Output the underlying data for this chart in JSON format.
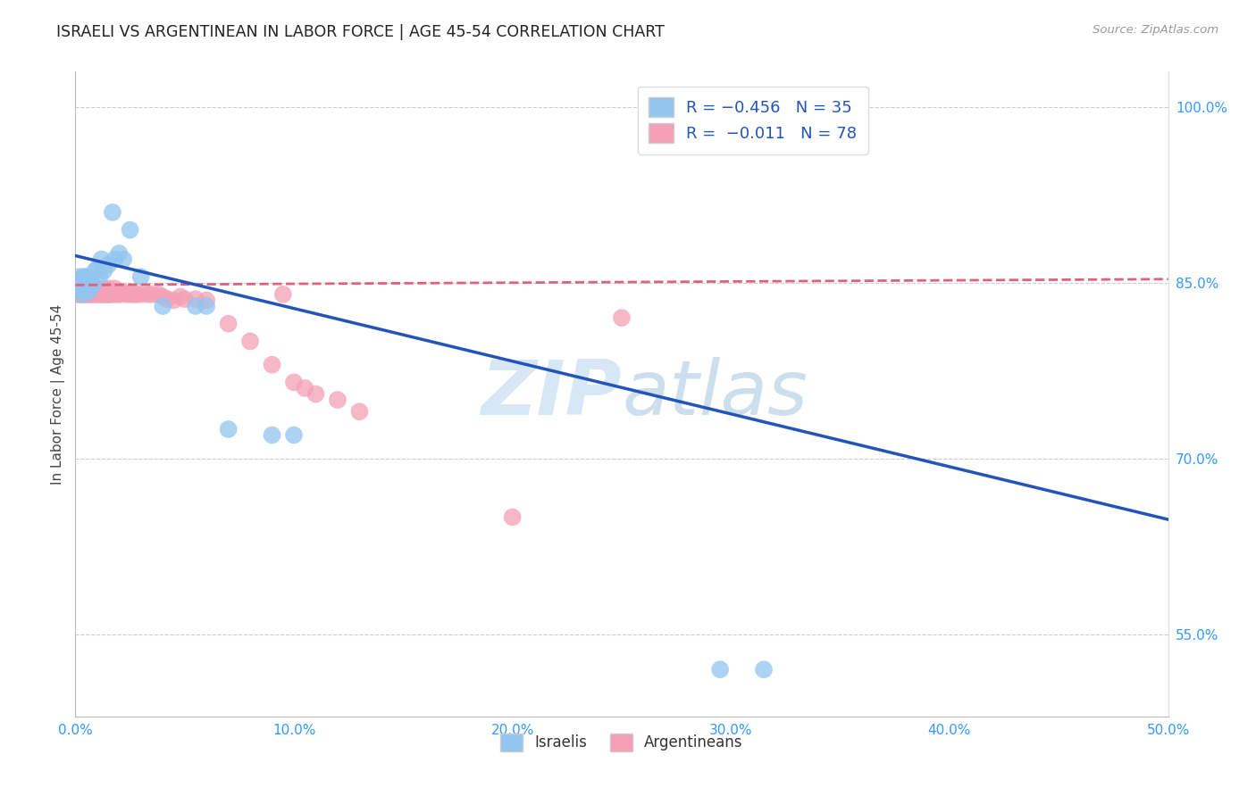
{
  "title": "ISRAELI VS ARGENTINEAN IN LABOR FORCE | AGE 45-54 CORRELATION CHART",
  "source": "Source: ZipAtlas.com",
  "ylabel": "In Labor Force | Age 45-54",
  "xlim": [
    0.0,
    0.5
  ],
  "ylim": [
    0.48,
    1.03
  ],
  "xticks": [
    0.0,
    0.1,
    0.2,
    0.3,
    0.4,
    0.5
  ],
  "xticklabels": [
    "0.0%",
    "10.0%",
    "20.0%",
    "30.0%",
    "40.0%",
    "50.0%"
  ],
  "ytick_vals": [
    0.55,
    0.7,
    0.85,
    1.0
  ],
  "ytick_labels": [
    "55.0%",
    "70.0%",
    "85.0%",
    "100.0%"
  ],
  "legend_blue_label": "R = −0.456   N = 35",
  "legend_pink_label": "R =  −0.011   N = 78",
  "watermark_zip": "ZIP",
  "watermark_atlas": "atlas",
  "blue_color": "#92C5F0",
  "pink_color": "#F4A0B5",
  "blue_line_color": "#2255BB",
  "pink_line_color": "#E06080",
  "israelis_label": "Israelis",
  "argentineans_label": "Argentineans",
  "blue_line_x0": 0.0,
  "blue_line_y0": 0.873,
  "blue_line_x1": 0.5,
  "blue_line_y1": 0.648,
  "pink_line_x0": 0.0,
  "pink_line_y0": 0.848,
  "pink_line_x1": 0.5,
  "pink_line_y1": 0.853,
  "blue_scatter_x": [
    0.001,
    0.001,
    0.002,
    0.002,
    0.003,
    0.003,
    0.004,
    0.004,
    0.005,
    0.005,
    0.006,
    0.006,
    0.007,
    0.008,
    0.009,
    0.01,
    0.011,
    0.012,
    0.013,
    0.015,
    0.017,
    0.018,
    0.02,
    0.022,
    0.025,
    0.03,
    0.04,
    0.055,
    0.06,
    0.07,
    0.09,
    0.1,
    0.295,
    0.315,
    0.355
  ],
  "blue_scatter_y": [
    0.845,
    0.85,
    0.845,
    0.855,
    0.84,
    0.848,
    0.845,
    0.855,
    0.845,
    0.855,
    0.842,
    0.852,
    0.848,
    0.848,
    0.86,
    0.862,
    0.855,
    0.87,
    0.86,
    0.865,
    0.91,
    0.87,
    0.875,
    0.87,
    0.895,
    0.855,
    0.83,
    0.83,
    0.83,
    0.725,
    0.72,
    0.72,
    0.52,
    0.52,
    1.0
  ],
  "pink_scatter_x": [
    0.001,
    0.001,
    0.001,
    0.001,
    0.001,
    0.001,
    0.002,
    0.002,
    0.002,
    0.002,
    0.002,
    0.003,
    0.003,
    0.003,
    0.003,
    0.003,
    0.004,
    0.004,
    0.004,
    0.005,
    0.005,
    0.005,
    0.005,
    0.006,
    0.006,
    0.006,
    0.007,
    0.007,
    0.007,
    0.008,
    0.008,
    0.008,
    0.009,
    0.009,
    0.01,
    0.01,
    0.011,
    0.011,
    0.012,
    0.012,
    0.013,
    0.013,
    0.014,
    0.015,
    0.015,
    0.016,
    0.017,
    0.018,
    0.019,
    0.02,
    0.021,
    0.022,
    0.023,
    0.025,
    0.027,
    0.028,
    0.03,
    0.033,
    0.035,
    0.038,
    0.04,
    0.042,
    0.045,
    0.048,
    0.05,
    0.055,
    0.06,
    0.07,
    0.08,
    0.09,
    0.095,
    0.1,
    0.105,
    0.11,
    0.12,
    0.13,
    0.2,
    0.25
  ],
  "pink_scatter_y": [
    0.84,
    0.843,
    0.845,
    0.847,
    0.85,
    0.852,
    0.84,
    0.842,
    0.844,
    0.848,
    0.852,
    0.84,
    0.843,
    0.845,
    0.848,
    0.851,
    0.84,
    0.844,
    0.847,
    0.84,
    0.844,
    0.847,
    0.85,
    0.84,
    0.844,
    0.848,
    0.84,
    0.843,
    0.847,
    0.84,
    0.844,
    0.848,
    0.84,
    0.844,
    0.84,
    0.844,
    0.84,
    0.844,
    0.84,
    0.844,
    0.84,
    0.845,
    0.84,
    0.84,
    0.845,
    0.84,
    0.84,
    0.845,
    0.84,
    0.84,
    0.842,
    0.842,
    0.84,
    0.84,
    0.84,
    0.84,
    0.84,
    0.84,
    0.84,
    0.84,
    0.838,
    0.836,
    0.835,
    0.838,
    0.836,
    0.836,
    0.835,
    0.815,
    0.8,
    0.78,
    0.84,
    0.765,
    0.76,
    0.755,
    0.75,
    0.74,
    0.65,
    0.82
  ]
}
